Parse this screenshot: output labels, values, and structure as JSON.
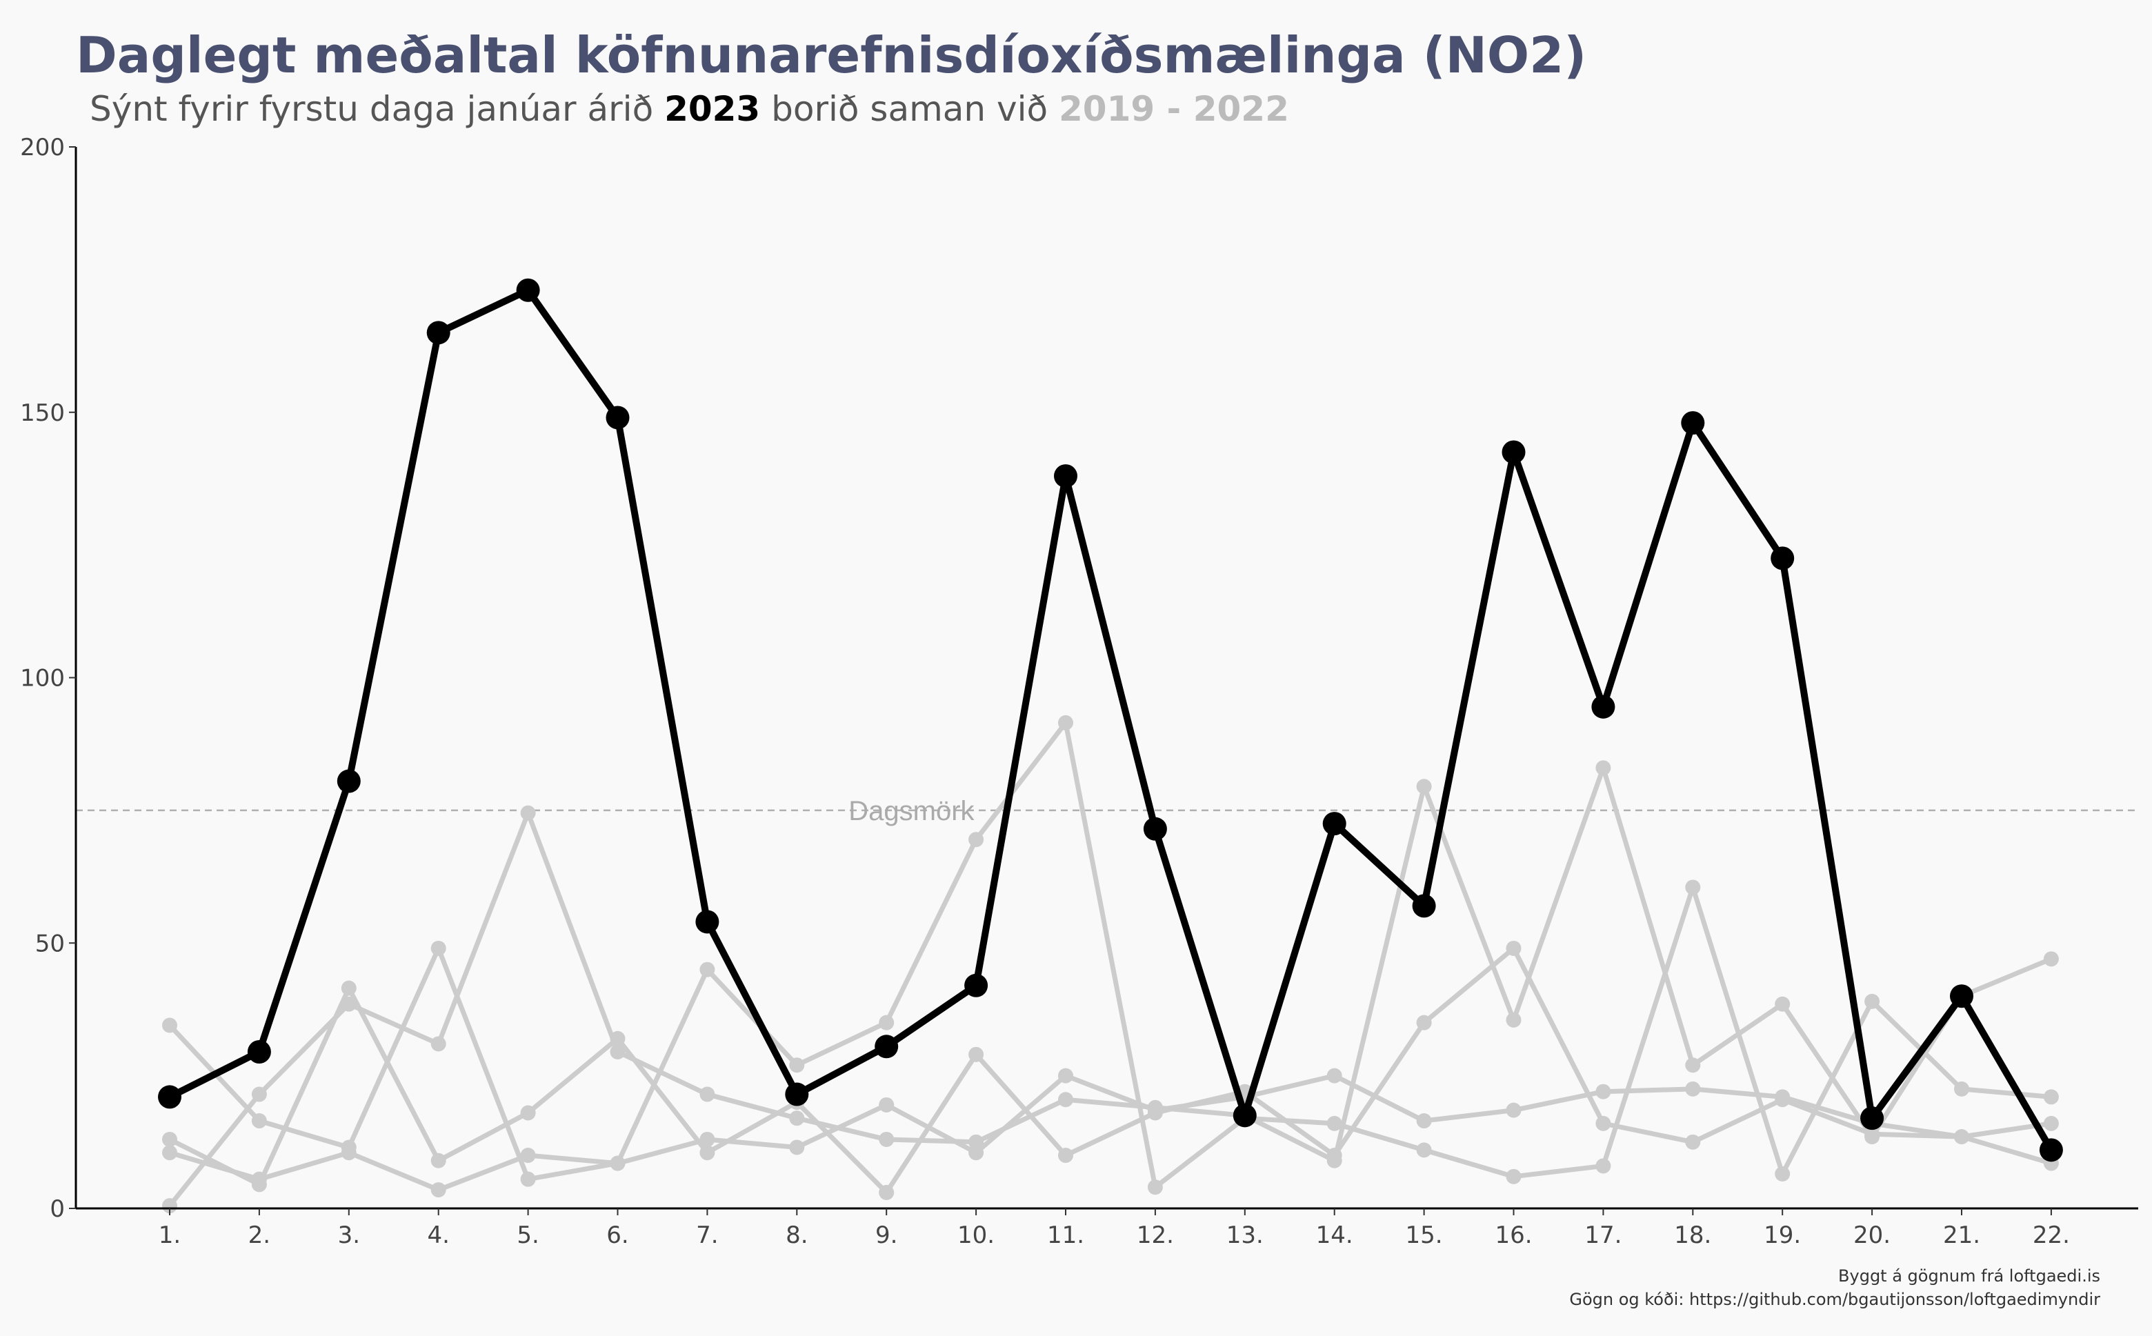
{
  "chart_data": {
    "type": "line",
    "title": "Daglegt meðaltal köfnunarefnisdíoxíðsmælinga (NO2)",
    "subtitle": {
      "prefix": "Sýnt fyrir fyrstu daga janúar árið ",
      "highlight": "2023",
      "middle": " borið saman við ",
      "comparison": "2019 - 2022"
    },
    "xlabel": "",
    "ylabel": "",
    "ylim": [
      0,
      200
    ],
    "yticks": [
      0,
      50,
      100,
      150,
      200
    ],
    "categories": [
      "1.",
      "2.",
      "3.",
      "4.",
      "5.",
      "6.",
      "7.",
      "8.",
      "9.",
      "10.",
      "11.",
      "12.",
      "13.",
      "14.",
      "15.",
      "16.",
      "17.",
      "18.",
      "19.",
      "20.",
      "21.",
      "22."
    ],
    "grid": false,
    "legend": "none",
    "reference_line": {
      "value": 75,
      "label": "Dagsmörk"
    },
    "colors": {
      "highlight": "#000000",
      "comparison": "#cccccc",
      "title": "#4a5070",
      "reference": "#b0b0b0"
    },
    "series": [
      {
        "values": [
          34.5,
          16.5,
          11.5,
          49,
          5.5,
          8.5,
          45,
          27,
          35,
          69.5,
          91.5,
          4,
          17,
          16,
          11,
          6,
          8,
          60.5,
          6.5,
          39,
          22.5,
          21
        ]
      },
      {
        "values": [
          13,
          4.5,
          41.5,
          9,
          18,
          32,
          10.5,
          20,
          3,
          29,
          10,
          18,
          22,
          10,
          35,
          49,
          16,
          12.5,
          20.5,
          14,
          13.5,
          8.5
        ]
      },
      {
        "values": [
          0.5,
          21.5,
          38.5,
          31,
          74.5,
          29.5,
          21.5,
          17,
          13,
          12.5,
          20.5,
          19,
          17.5,
          9,
          79.5,
          35.5,
          83,
          27,
          38.5,
          13.5,
          40,
          47
        ]
      },
      {
        "values": [
          10.5,
          5.5,
          10.5,
          3.5,
          10,
          8.5,
          13,
          11.5,
          19.5,
          10.5,
          25,
          18.5,
          21,
          25,
          16.5,
          18.5,
          22,
          22.5,
          21,
          16,
          13.5,
          16
        ]
      },
      {
        "name": "2023",
        "highlight": true,
        "values": [
          21,
          29.5,
          80.5,
          165,
          173,
          149,
          54,
          21.5,
          30.5,
          42,
          138,
          71.5,
          17.5,
          72.5,
          57,
          142.5,
          94.5,
          148,
          122.5,
          17,
          40,
          11
        ]
      }
    ]
  },
  "caption": {
    "line1": "Byggt á gögnum frá loftgaedi.is",
    "line2": "Gögn og kóði: https://github.com/bgautijonsson/loftgaedimyndir"
  }
}
